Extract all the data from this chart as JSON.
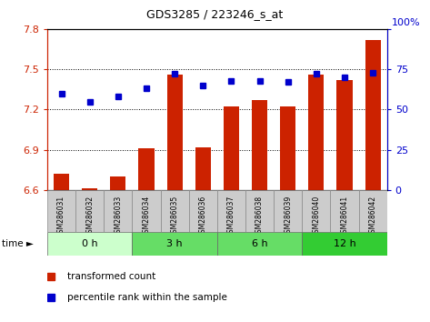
{
  "title": "GDS3285 / 223246_s_at",
  "samples": [
    "GSM286031",
    "GSM286032",
    "GSM286033",
    "GSM286034",
    "GSM286035",
    "GSM286036",
    "GSM286037",
    "GSM286038",
    "GSM286039",
    "GSM286040",
    "GSM286041",
    "GSM286042"
  ],
  "transformed_count": [
    6.72,
    6.61,
    6.7,
    6.91,
    7.46,
    6.92,
    7.22,
    7.27,
    7.22,
    7.46,
    7.42,
    7.72
  ],
  "percentile_rank": [
    60,
    55,
    58,
    63,
    72,
    65,
    68,
    68,
    67,
    72,
    70,
    73
  ],
  "ylim_left": [
    6.6,
    7.8
  ],
  "ylim_right": [
    0,
    100
  ],
  "yticks_left": [
    6.6,
    6.9,
    7.2,
    7.5,
    7.8
  ],
  "yticks_right": [
    0,
    25,
    50,
    75,
    100
  ],
  "bar_color": "#cc2200",
  "dot_color": "#0000cc",
  "group_labels": [
    "0 h",
    "3 h",
    "6 h",
    "12 h"
  ],
  "group_starts": [
    0,
    3,
    6,
    9
  ],
  "group_sizes": [
    3,
    3,
    3,
    3
  ],
  "group_colors": [
    "#ccffcc",
    "#66dd66",
    "#66dd66",
    "#33cc33"
  ],
  "sample_label_bg": "#cccccc",
  "bg_color": "#ffffff",
  "left_tick_color": "#cc2200",
  "right_tick_color": "#0000cc",
  "right_axis_label": "100%"
}
